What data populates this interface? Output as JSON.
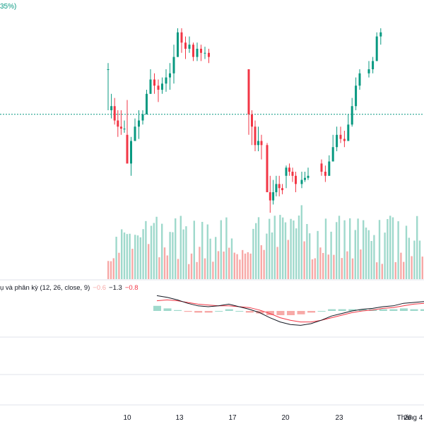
{
  "header": {
    "change_text": "35%)"
  },
  "macd_header": {
    "label": "ụ và phân kỳ (12, 26, close, 9)",
    "v_hist": "−0.6",
    "v_macd": "−1.3",
    "v_signal": "−0.8"
  },
  "colors": {
    "up": "#089981",
    "down": "#f23645",
    "vol_up": "#9fd9cc",
    "vol_down": "#f7a9a7",
    "macd": "#131722",
    "signal": "#f23645"
  },
  "chart_data": [
    {
      "type": "candlestick",
      "x_tick_labels": [
        "10",
        "13",
        "17",
        "20",
        "23",
        "26",
        "Tháng 4"
      ],
      "y_tick_labels": [],
      "ylim": [
        0,
        100
      ],
      "price_line_value": 58,
      "candles": [
        [
          80,
          80,
          83,
          60
        ],
        [
          60,
          62,
          68,
          56
        ],
        [
          62,
          55,
          66,
          53
        ],
        [
          55,
          52,
          60,
          47
        ],
        [
          52,
          51,
          60,
          48
        ],
        [
          51,
          51,
          55,
          49
        ],
        [
          48,
          34,
          65,
          34
        ],
        [
          34,
          45,
          47,
          28
        ],
        [
          45,
          52,
          56,
          45
        ],
        [
          52,
          55,
          60,
          46
        ],
        [
          55,
          58,
          60,
          53
        ],
        [
          58,
          68,
          70,
          58
        ],
        [
          68,
          75,
          80,
          68
        ],
        [
          75,
          72,
          78,
          68
        ],
        [
          72,
          70,
          75,
          64
        ],
        [
          70,
          73,
          76,
          68
        ],
        [
          73,
          76,
          80,
          69
        ],
        [
          76,
          78,
          83,
          70
        ],
        [
          78,
          86,
          92,
          73
        ],
        [
          86,
          98,
          100,
          86
        ],
        [
          98,
          93,
          100,
          88
        ],
        [
          93,
          90,
          96,
          85
        ],
        [
          90,
          92,
          96,
          88
        ],
        [
          92,
          86,
          93,
          84
        ],
        [
          86,
          90,
          93,
          84
        ],
        [
          90,
          88,
          92,
          84
        ],
        [
          88,
          88,
          91,
          85
        ],
        [
          88,
          86,
          90,
          83
        ],
        [
          80,
          58,
          60,
          48
        ],
        [
          58,
          52,
          60,
          43
        ],
        [
          52,
          43,
          55,
          40
        ],
        [
          43,
          45,
          52,
          40
        ],
        [
          45,
          43,
          48,
          36
        ],
        [
          43,
          20,
          44,
          20
        ],
        [
          20,
          16,
          28,
          10
        ],
        [
          16,
          20,
          26,
          14
        ],
        [
          20,
          24,
          28,
          18
        ],
        [
          24,
          22,
          28,
          18
        ],
        [
          22,
          21,
          24,
          19
        ],
        [
          28,
          32,
          33,
          22
        ],
        [
          32,
          30,
          34,
          28
        ],
        [
          30,
          28,
          32,
          25
        ],
        [
          28,
          24,
          30,
          20
        ],
        [
          24,
          26,
          30,
          22
        ],
        [
          26,
          27,
          30,
          25
        ],
        [
          27,
          28,
          32,
          26
        ],
        [
          34,
          30,
          36,
          28
        ],
        [
          30,
          28,
          33,
          25
        ],
        [
          28,
          35,
          38,
          28
        ],
        [
          35,
          42,
          48,
          35
        ],
        [
          42,
          48,
          52,
          40
        ],
        [
          48,
          46,
          52,
          44
        ],
        [
          46,
          45,
          50,
          42
        ],
        [
          45,
          53,
          58,
          45
        ],
        [
          53,
          62,
          66,
          52
        ],
        [
          62,
          72,
          76,
          60
        ],
        [
          72,
          78,
          80,
          70
        ],
        [
          78,
          80,
          84,
          76
        ],
        [
          80,
          84,
          86,
          78
        ],
        [
          84,
          96,
          98,
          84
        ],
        [
          96,
          98,
          100,
          92
        ]
      ]
    },
    {
      "type": "macd",
      "label": "ụ và phân kỳ (12, 26, close, 9)",
      "values": {
        "histogram": -0.6,
        "macd": -1.3,
        "signal": -0.8
      },
      "macd_line": [
        1.8,
        1.6,
        1.3,
        0.9,
        0.6,
        0.5,
        0.6,
        0.8,
        0.5,
        0.2,
        -0.2,
        -0.8,
        -1.3,
        -1.6,
        -1.7,
        -1.5,
        -1.1,
        -0.6,
        -0.3,
        0.0,
        0.2,
        0.3,
        0.5,
        0.6,
        0.9,
        1.0,
        1.1
      ],
      "signal_line": [
        1.2,
        1.3,
        1.2,
        1.0,
        0.8,
        0.7,
        0.6,
        0.6,
        0.5,
        0.4,
        0.1,
        -0.3,
        -0.8,
        -1.1,
        -1.3,
        -1.3,
        -1.1,
        -0.8,
        -0.5,
        -0.2,
        0.0,
        0.1,
        0.3,
        0.4,
        0.6,
        0.8,
        0.9
      ],
      "histogram": [
        0.6,
        0.3,
        0.1,
        -0.1,
        -0.2,
        -0.2,
        0.0,
        0.2,
        0.0,
        -0.2,
        -0.3,
        -0.5,
        -0.5,
        -0.5,
        -0.4,
        -0.2,
        0.0,
        0.2,
        0.2,
        0.2,
        0.2,
        0.2,
        0.2,
        0.2,
        0.3,
        0.2,
        0.2
      ]
    }
  ]
}
